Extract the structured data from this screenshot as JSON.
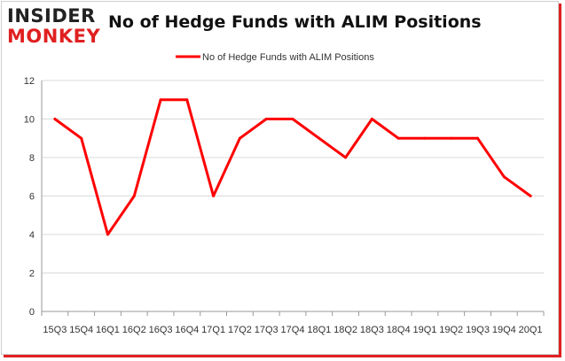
{
  "brand": {
    "line1": "INSIDER",
    "line2": "MONKEY"
  },
  "chart_data": {
    "type": "line",
    "title": "No of Hedge Funds with ALIM Positions",
    "xlabel": "",
    "ylabel": "",
    "categories": [
      "2015Q3",
      "2015Q4",
      "2016Q1",
      "2016Q2",
      "2016Q3",
      "2016Q4",
      "2017Q1",
      "2017Q2",
      "2017Q3",
      "2017Q4",
      "2018Q1",
      "2018Q2",
      "2018Q3",
      "2018Q4",
      "2019Q1",
      "2019Q2",
      "2019Q3",
      "2019Q4",
      "2020Q1"
    ],
    "tick_labels": [
      "15Q3",
      "15Q4",
      "16Q1",
      "16Q2",
      "16Q3",
      "16Q4",
      "17Q1",
      "17Q2",
      "17Q3",
      "17Q4",
      "18Q1",
      "18Q2",
      "18Q3",
      "18Q4",
      "19Q1",
      "19Q2",
      "19Q3",
      "19Q4",
      "20Q1"
    ],
    "series": [
      {
        "name": "No of Hedge Funds with ALIM Positions",
        "color": "#ff0000",
        "values": [
          10,
          9,
          4,
          6,
          11,
          11,
          6,
          9,
          10,
          10,
          9,
          8,
          10,
          9,
          9,
          9,
          9,
          7,
          6
        ]
      }
    ],
    "ylim": [
      0,
      12
    ],
    "yticks": [
      0,
      2,
      4,
      6,
      8,
      10,
      12
    ],
    "grid": true,
    "legend": "top-center"
  }
}
